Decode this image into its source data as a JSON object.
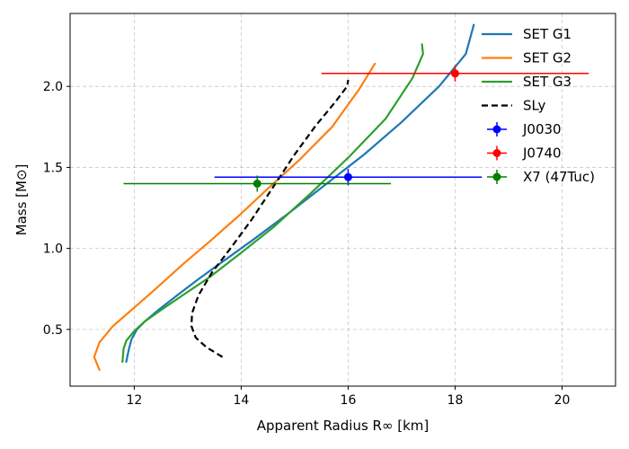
{
  "chart_data": {
    "type": "line",
    "title": "",
    "xlabel": "Apparent Radius R∞ [km]",
    "ylabel": "Mass [M⊙]",
    "xlim": [
      10.8,
      21.0
    ],
    "ylim": [
      0.15,
      2.45
    ],
    "xticks": [
      12,
      14,
      16,
      18,
      20
    ],
    "yticks": [
      0.5,
      1.0,
      1.5,
      2.0
    ],
    "grid": true,
    "legend_position": "top-right",
    "series": [
      {
        "name": "SET G1",
        "color": "#1f77b4",
        "style": "solid",
        "x": [
          11.85,
          11.9,
          11.95,
          12.05,
          12.2,
          12.45,
          12.8,
          13.2,
          13.7,
          14.25,
          14.9,
          15.6,
          16.3,
          17.0,
          17.7,
          18.2,
          18.35
        ],
        "y": [
          0.3,
          0.38,
          0.44,
          0.5,
          0.55,
          0.62,
          0.71,
          0.81,
          0.93,
          1.06,
          1.22,
          1.4,
          1.58,
          1.78,
          2.0,
          2.2,
          2.38
        ]
      },
      {
        "name": "SET G2",
        "color": "#ff7f0e",
        "style": "solid",
        "x": [
          11.35,
          11.25,
          11.35,
          11.6,
          11.95,
          12.4,
          12.9,
          13.4,
          13.95,
          14.5,
          15.1,
          15.7,
          16.2,
          16.5
        ],
        "y": [
          0.25,
          0.33,
          0.42,
          0.52,
          0.62,
          0.75,
          0.9,
          1.04,
          1.2,
          1.37,
          1.55,
          1.75,
          1.98,
          2.14
        ]
      },
      {
        "name": "SET G3",
        "color": "#2ca02c",
        "style": "solid",
        "x": [
          11.78,
          11.8,
          11.85,
          12.0,
          12.2,
          12.5,
          12.9,
          13.4,
          13.95,
          14.6,
          15.3,
          16.0,
          16.7,
          17.2,
          17.4,
          17.38
        ],
        "y": [
          0.3,
          0.38,
          0.43,
          0.49,
          0.55,
          0.62,
          0.71,
          0.82,
          0.96,
          1.13,
          1.34,
          1.56,
          1.8,
          2.05,
          2.2,
          2.26
        ]
      },
      {
        "name": "SLy",
        "color": "#000000",
        "style": "dashed",
        "x": [
          13.65,
          13.35,
          13.15,
          13.07,
          13.08,
          13.2,
          13.45,
          13.8,
          14.2,
          14.6,
          15.0,
          15.4,
          15.75,
          15.98,
          16.0
        ],
        "y": [
          0.33,
          0.39,
          0.45,
          0.52,
          0.6,
          0.71,
          0.85,
          1.0,
          1.18,
          1.38,
          1.58,
          1.76,
          1.9,
          2.0,
          2.04
        ]
      }
    ],
    "error_points": [
      {
        "name": "J0030",
        "color": "#0000ff",
        "x": 16.0,
        "y": 1.44,
        "xerr_low": 2.5,
        "xerr_high": 2.5,
        "yerr_low": 0.05,
        "yerr_high": 0.05
      },
      {
        "name": "J0740",
        "color": "#ff0000",
        "x": 18.0,
        "y": 2.08,
        "xerr_low": 2.5,
        "xerr_high": 2.5,
        "yerr_low": 0.05,
        "yerr_high": 0.05
      },
      {
        "name": "X7 (47Tuc)",
        "color": "#008000",
        "x": 14.3,
        "y": 1.4,
        "xerr_low": 2.5,
        "xerr_high": 2.5,
        "yerr_low": 0.05,
        "yerr_high": 0.05
      }
    ]
  }
}
